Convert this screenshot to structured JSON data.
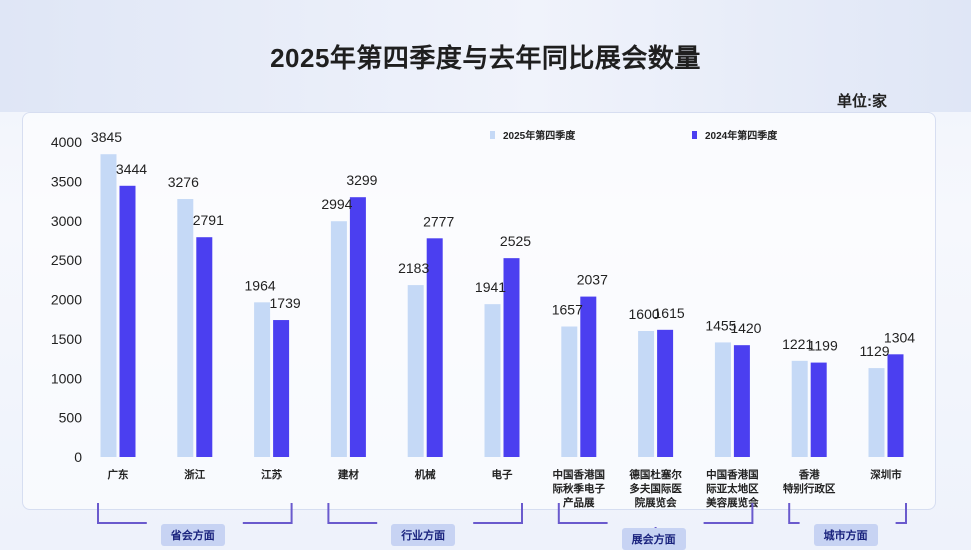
{
  "title": "2025年第四季度与去年同比展会数量",
  "unit_label": "单位:家",
  "colors": {
    "series_2025": "#c5d9f6",
    "series_2024": "#4b3ff0",
    "bracket": "#6a5acd"
  },
  "chart_data": {
    "type": "bar",
    "categories": [
      "广东",
      "浙江",
      "江苏",
      "建材",
      "机械",
      "电子",
      "中国香港国际秋季电子产品展",
      "德国杜塞尔多夫国际医院展览会",
      "中国香港国际亚太地区美容展览会",
      "香港特别行政区",
      "深圳市"
    ],
    "category_lines": [
      [
        "广东"
      ],
      [
        "浙江"
      ],
      [
        "江苏"
      ],
      [
        "建材"
      ],
      [
        "机械"
      ],
      [
        "电子"
      ],
      [
        "中国香港国",
        "际秋季电子",
        "产品展"
      ],
      [
        "德国杜塞尔",
        "多夫国际医",
        "院展览会"
      ],
      [
        "中国香港国",
        "际亚太地区",
        "美容展览会"
      ],
      [
        "香港",
        "特别行政区"
      ],
      [
        "深圳市"
      ]
    ],
    "series": [
      {
        "name": "2025年第四季度",
        "values": [
          3845,
          3276,
          1964,
          2994,
          2183,
          1941,
          1657,
          1600,
          1455,
          1221,
          1129
        ]
      },
      {
        "name": "2024年第四季度",
        "values": [
          3444,
          2791,
          1739,
          3299,
          2777,
          2525,
          2037,
          1615,
          1420,
          1199,
          1304
        ]
      }
    ],
    "ylim": [
      0,
      4000
    ],
    "yticks": [
      0,
      500,
      1000,
      1500,
      2000,
      2500,
      3000,
      3500,
      4000
    ],
    "ytick_labels": [
      "0",
      "500",
      "1000",
      "1500",
      "2000",
      "2500",
      "3000",
      "3500",
      "4000"
    ],
    "grid": false,
    "legend_position": "top"
  },
  "groups": [
    {
      "label": "省会方面",
      "first": 0,
      "last": 2
    },
    {
      "label": "行业方面",
      "first": 3,
      "last": 5
    },
    {
      "label": "展会方面",
      "first": 6,
      "last": 8
    },
    {
      "label": "城市方面",
      "first": 9,
      "last": 10
    }
  ]
}
